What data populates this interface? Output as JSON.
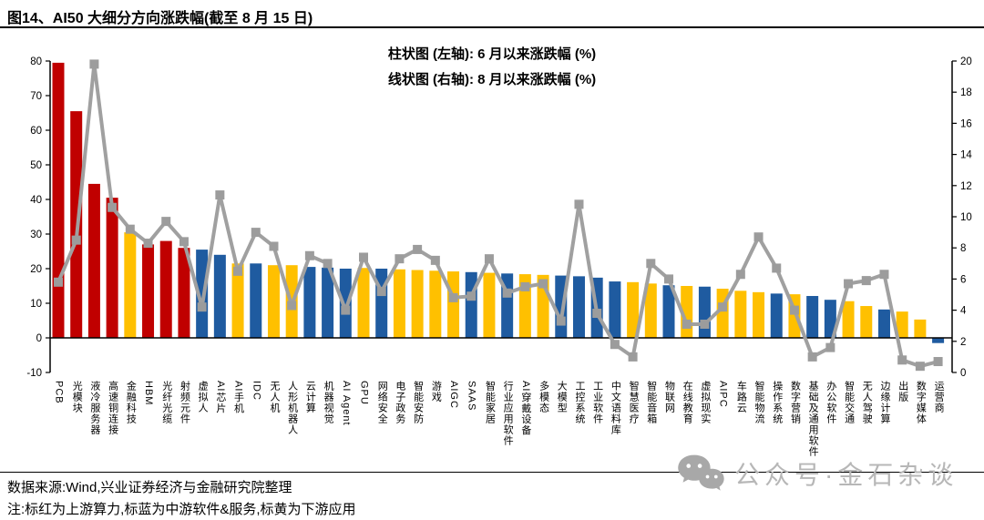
{
  "title": "图14、AI50 大细分方向涨跌幅(截至 8 月 15 日)",
  "legend": {
    "bar": "柱状图 (左轴): 6 月以来涨跌幅 (%)",
    "line": "线状图 (右轴): 8 月以来涨跌幅 (%)"
  },
  "footer": {
    "source": "数据来源:Wind,兴业证券经济与金融研究院整理",
    "note": "注:标红为上游算力,标蓝为中游软件&服务,标黄为下游应用"
  },
  "watermark": {
    "text": "公众号·金石杂谈",
    "icon": "wechat-icon"
  },
  "colors": {
    "red": "#C00000",
    "blue": "#1F5BA0",
    "yellow": "#FFC000",
    "line": "#A0A0A0",
    "marker": "#9C9C9C",
    "axis": "#000000"
  },
  "chart_data": {
    "type": "bar+line",
    "categories": [
      "PCB",
      "光模块",
      "液冷服务器",
      "高速铜连接",
      "金融科技",
      "HBM",
      "光纤光缆",
      "射频元件",
      "虚拟人",
      "AI芯片",
      "AI手机",
      "IDC",
      "无人机",
      "人形机器人",
      "云计算",
      "机器视觉",
      "AI Agent",
      "GPU",
      "网络安全",
      "电子政务",
      "智能安防",
      "游戏",
      "AIGC",
      "SAAS",
      "智能家居",
      "行业应用软件",
      "AI穿戴设备",
      "多模态",
      "大模型",
      "工控系统",
      "工业软件",
      "中文语料库",
      "智慧医疗",
      "智能音箱",
      "物联网",
      "在线教育",
      "虚拟现实",
      "AIPC",
      "车路云",
      "智能物流",
      "操作系统",
      "数字营销",
      "基础及通用软件",
      "办公软件",
      "智能交通",
      "无人驾驶",
      "边缘计算",
      "出版",
      "数字媒体",
      "运营商"
    ],
    "series": [
      {
        "name": "6月以来涨跌幅(%)",
        "type": "bar",
        "axis": "left",
        "values": [
          79.5,
          65.5,
          44.5,
          40.5,
          30.5,
          27,
          28,
          26,
          25.5,
          24,
          21.5,
          21.5,
          21,
          21,
          20.5,
          20.3,
          20,
          20.2,
          20,
          19.8,
          19.6,
          19.4,
          19.2,
          19,
          18.8,
          18.6,
          18.4,
          18.2,
          18,
          17.8,
          17.4,
          16.3,
          16.1,
          15.7,
          15.2,
          15,
          14.8,
          14.2,
          13.6,
          13.2,
          12.8,
          12.6,
          12.1,
          11,
          10.6,
          9.2,
          8.2,
          7.6,
          5.3,
          -1.5
        ],
        "streams": [
          "red",
          "red",
          "red",
          "red",
          "yellow",
          "red",
          "red",
          "red",
          "blue",
          "blue",
          "yellow",
          "blue",
          "yellow",
          "yellow",
          "blue",
          "blue",
          "blue",
          "yellow",
          "blue",
          "yellow",
          "yellow",
          "yellow",
          "yellow",
          "blue",
          "yellow",
          "blue",
          "yellow",
          "yellow",
          "blue",
          "blue",
          "blue",
          "blue",
          "yellow",
          "yellow",
          "blue",
          "yellow",
          "blue",
          "yellow",
          "yellow",
          "yellow",
          "blue",
          "yellow",
          "blue",
          "blue",
          "yellow",
          "yellow",
          "blue",
          "yellow",
          "yellow",
          "blue"
        ]
      },
      {
        "name": "8月以来涨跌幅(%)",
        "type": "line",
        "axis": "right",
        "values": [
          5.8,
          8.5,
          19.8,
          10.6,
          9.2,
          8.3,
          9.7,
          8.4,
          4.2,
          11.4,
          6.5,
          9.0,
          8.1,
          4.3,
          7.5,
          7.0,
          4.0,
          7.4,
          5.2,
          7.3,
          7.9,
          7.2,
          4.8,
          4.9,
          7.3,
          5.1,
          5.5,
          5.7,
          3.3,
          10.8,
          3.8,
          1.8,
          1.0,
          7.0,
          6.0,
          3.1,
          3.1,
          4.2,
          6.3,
          8.7,
          6.7,
          4.0,
          1.0,
          1.6,
          5.7,
          5.9,
          6.3,
          0.8,
          0.4,
          0.7
        ]
      }
    ],
    "left_axis": {
      "min": -10,
      "max": 80,
      "step": 10
    },
    "right_axis": {
      "min": 0,
      "max": 20,
      "step": 2
    },
    "grid": false,
    "legend_position": "top-center"
  }
}
